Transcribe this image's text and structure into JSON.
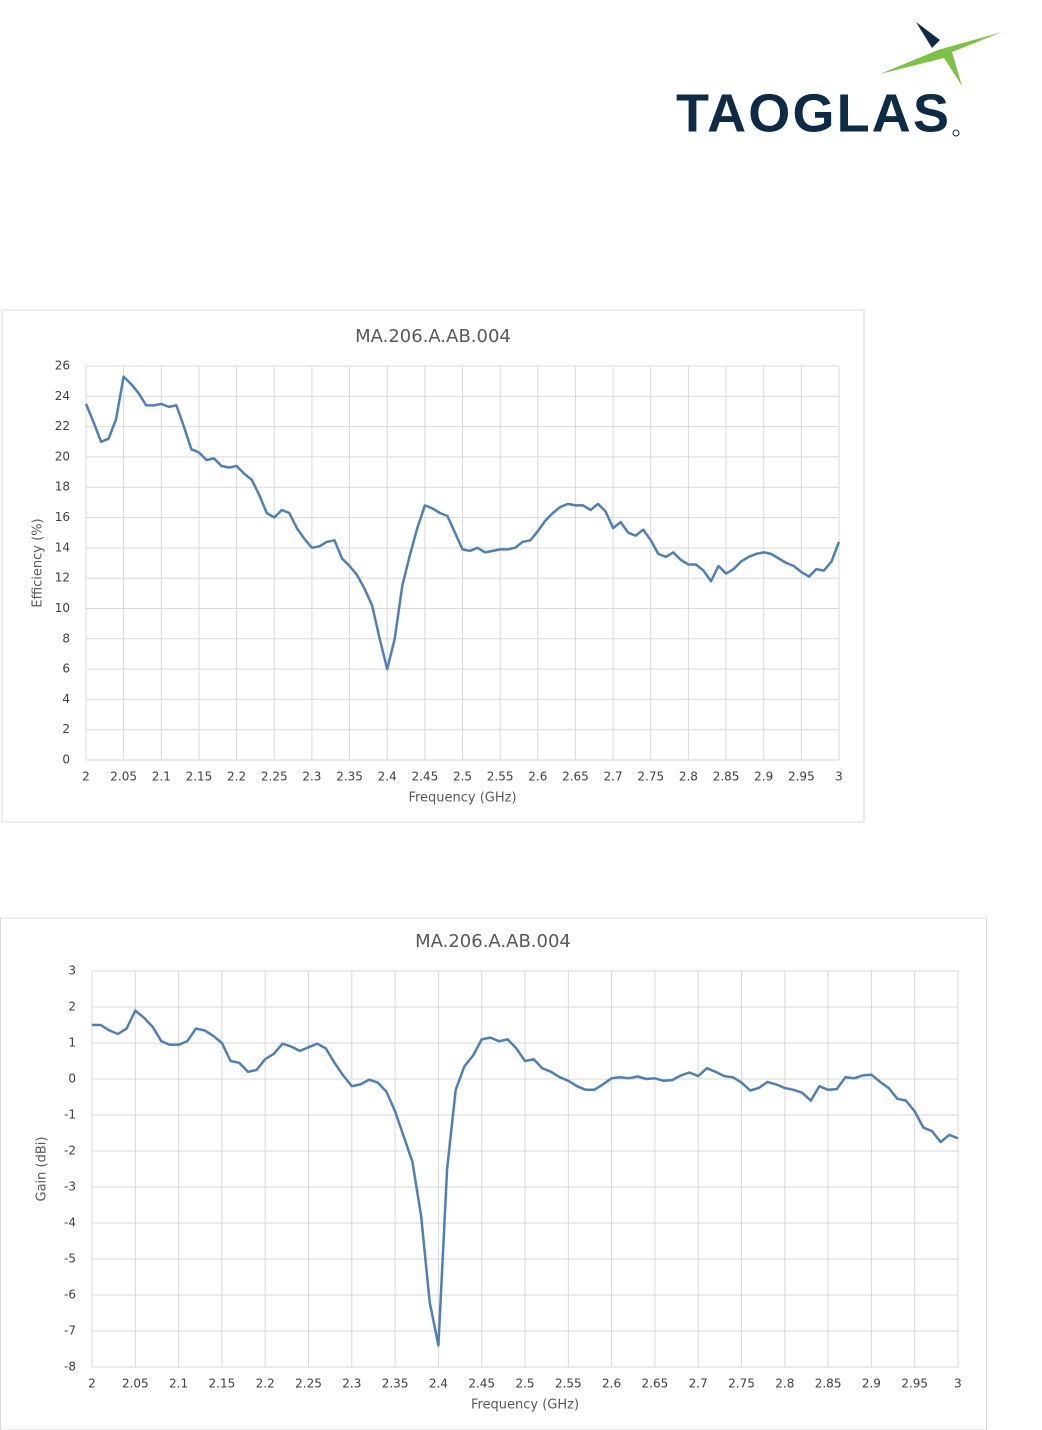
{
  "logo": {
    "text": "TAOGLAS"
  },
  "chart_data": [
    {
      "type": "line",
      "title": "MA.206.A.AB.004",
      "x_label": "Frequency (GHz)",
      "y_label": "Efficiency (%)",
      "x": [
        2,
        2.01,
        2.02,
        2.03,
        2.04,
        2.05,
        2.06,
        2.07,
        2.08,
        2.09,
        2.1,
        2.11,
        2.12,
        2.13,
        2.14,
        2.15,
        2.16,
        2.17,
        2.18,
        2.19,
        2.2,
        2.21,
        2.22,
        2.23,
        2.24,
        2.25,
        2.26,
        2.27,
        2.28,
        2.29,
        2.3,
        2.31,
        2.32,
        2.33,
        2.34,
        2.35,
        2.36,
        2.37,
        2.38,
        2.39,
        2.4,
        2.41,
        2.42,
        2.43,
        2.44,
        2.45,
        2.46,
        2.47,
        2.48,
        2.49,
        2.5,
        2.51,
        2.52,
        2.53,
        2.54,
        2.55,
        2.56,
        2.57,
        2.58,
        2.59,
        2.6,
        2.61,
        2.62,
        2.63,
        2.64,
        2.65,
        2.66,
        2.67,
        2.68,
        2.69,
        2.7,
        2.71,
        2.72,
        2.73,
        2.74,
        2.75,
        2.76,
        2.77,
        2.78,
        2.79,
        2.8,
        2.81,
        2.82,
        2.83,
        2.84,
        2.85,
        2.86,
        2.87,
        2.88,
        2.89,
        2.9,
        2.91,
        2.92,
        2.93,
        2.94,
        2.95,
        2.96,
        2.97,
        2.98,
        2.99,
        3
      ],
      "values": [
        23.5,
        22.3,
        21.0,
        21.2,
        22.5,
        25.3,
        24.8,
        24.2,
        23.4,
        23.4,
        23.5,
        23.3,
        23.4,
        22.0,
        20.5,
        20.3,
        19.8,
        19.9,
        19.4,
        19.3,
        19.4,
        18.9,
        18.5,
        17.5,
        16.3,
        16.0,
        16.5,
        16.3,
        15.3,
        14.6,
        14.0,
        14.1,
        14.4,
        14.5,
        13.3,
        12.8,
        12.2,
        11.3,
        10.2,
        8.0,
        6.0,
        8.0,
        11.5,
        13.5,
        15.3,
        16.8,
        16.6,
        16.3,
        16.1,
        15.0,
        13.9,
        13.8,
        14.0,
        13.7,
        13.8,
        13.9,
        13.9,
        14.0,
        14.4,
        14.5,
        15.1,
        15.8,
        16.3,
        16.7,
        16.9,
        16.8,
        16.8,
        16.5,
        16.9,
        16.4,
        15.3,
        15.7,
        15.0,
        14.8,
        15.2,
        14.5,
        13.6,
        13.4,
        13.7,
        13.2,
        12.9,
        12.9,
        12.5,
        11.8,
        12.8,
        12.3,
        12.6,
        13.1,
        13.4,
        13.6,
        13.7,
        13.6,
        13.3,
        13.0,
        12.8,
        12.4,
        12.1,
        12.6,
        12.5,
        13.1,
        14.4
      ],
      "color": "#4f7fbb",
      "xlim": [
        2,
        3
      ],
      "xticks": [
        2,
        2.05,
        2.1,
        2.15,
        2.2,
        2.25,
        2.3,
        2.35,
        2.4,
        2.45,
        2.5,
        2.55,
        2.6,
        2.65,
        2.7,
        2.75,
        2.8,
        2.85,
        2.9,
        2.95,
        3
      ],
      "ylim": [
        0,
        26
      ],
      "yticks": [
        0,
        2,
        4,
        6,
        8,
        10,
        12,
        14,
        16,
        18,
        20,
        22,
        24,
        26
      ],
      "grid": true
    },
    {
      "type": "line",
      "title": "MA.206.A.AB.004",
      "x_label": "Frequency (GHz)",
      "y_label": "Gain (dBi)",
      "x": [
        2,
        2.01,
        2.02,
        2.03,
        2.04,
        2.05,
        2.06,
        2.07,
        2.08,
        2.09,
        2.1,
        2.11,
        2.12,
        2.13,
        2.14,
        2.15,
        2.16,
        2.17,
        2.18,
        2.19,
        2.2,
        2.21,
        2.22,
        2.23,
        2.24,
        2.25,
        2.26,
        2.27,
        2.28,
        2.29,
        2.3,
        2.31,
        2.32,
        2.33,
        2.34,
        2.35,
        2.36,
        2.37,
        2.38,
        2.39,
        2.4,
        2.41,
        2.42,
        2.43,
        2.44,
        2.45,
        2.46,
        2.47,
        2.48,
        2.49,
        2.5,
        2.51,
        2.52,
        2.53,
        2.54,
        2.55,
        2.56,
        2.57,
        2.58,
        2.59,
        2.6,
        2.61,
        2.62,
        2.63,
        2.64,
        2.65,
        2.66,
        2.67,
        2.68,
        2.69,
        2.7,
        2.71,
        2.72,
        2.73,
        2.74,
        2.75,
        2.76,
        2.77,
        2.78,
        2.79,
        2.8,
        2.81,
        2.82,
        2.83,
        2.84,
        2.85,
        2.86,
        2.87,
        2.88,
        2.89,
        2.9,
        2.91,
        2.92,
        2.93,
        2.94,
        2.95,
        2.96,
        2.97,
        2.98,
        2.99,
        3
      ],
      "values": [
        1.5,
        1.5,
        1.35,
        1.25,
        1.4,
        1.9,
        1.7,
        1.45,
        1.05,
        0.95,
        0.95,
        1.05,
        1.4,
        1.35,
        1.2,
        1.0,
        0.5,
        0.45,
        0.2,
        0.25,
        0.55,
        0.7,
        0.98,
        0.9,
        0.78,
        0.88,
        0.98,
        0.85,
        0.45,
        0.1,
        -0.2,
        -0.15,
        -0.02,
        -0.1,
        -0.35,
        -0.9,
        -1.6,
        -2.3,
        -3.8,
        -6.2,
        -7.4,
        -2.5,
        -0.3,
        0.35,
        0.65,
        1.1,
        1.15,
        1.05,
        1.1,
        0.85,
        0.5,
        0.55,
        0.3,
        0.2,
        0.05,
        -0.05,
        -0.2,
        -0.3,
        -0.3,
        -0.15,
        0.02,
        0.05,
        0.02,
        0.07,
        0.0,
        0.02,
        -0.05,
        -0.03,
        0.1,
        0.18,
        0.08,
        0.3,
        0.2,
        0.08,
        0.05,
        -0.1,
        -0.32,
        -0.25,
        -0.08,
        -0.15,
        -0.25,
        -0.3,
        -0.38,
        -0.6,
        -0.2,
        -0.3,
        -0.28,
        0.05,
        0.02,
        0.1,
        0.12,
        -0.08,
        -0.25,
        -0.55,
        -0.6,
        -0.9,
        -1.35,
        -1.45,
        -1.75,
        -1.55,
        -1.65
      ],
      "color": "#4f7fbb",
      "xlim": [
        2,
        3
      ],
      "xticks": [
        2,
        2.05,
        2.1,
        2.15,
        2.2,
        2.25,
        2.3,
        2.35,
        2.4,
        2.45,
        2.5,
        2.55,
        2.6,
        2.65,
        2.7,
        2.75,
        2.8,
        2.85,
        2.9,
        2.95,
        3
      ],
      "ylim": [
        -8,
        3
      ],
      "yticks": [
        -8,
        -7,
        -6,
        -5,
        -4,
        -3,
        -2,
        -1,
        0,
        1,
        2,
        3
      ],
      "grid": true
    }
  ]
}
